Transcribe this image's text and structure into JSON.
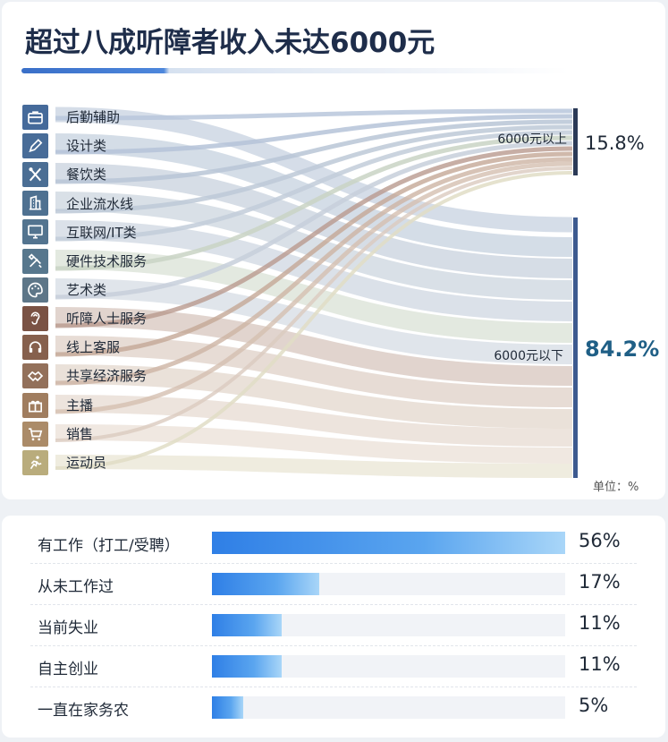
{
  "title": "超过八成听障者收入未达6000元",
  "unit": "单位：%",
  "chart_data": [
    {
      "type": "sankey",
      "sources": [
        {
          "label": "后勤辅助",
          "icon": "briefcase-icon",
          "color": "#456a9a"
        },
        {
          "label": "设计类",
          "icon": "pencil-icon",
          "color": "#486c98"
        },
        {
          "label": "餐饮类",
          "icon": "fork-spoon-icon",
          "color": "#4b6e94"
        },
        {
          "label": "企业流水线",
          "icon": "building-icon",
          "color": "#4f7191"
        },
        {
          "label": "互联网/IT类",
          "icon": "monitor-icon",
          "color": "#53748f"
        },
        {
          "label": "硬件技术服务",
          "icon": "tools-icon",
          "color": "#57778d"
        },
        {
          "label": "艺术类",
          "icon": "palette-icon",
          "color": "#5d7688"
        },
        {
          "label": "听障人士服务",
          "icon": "ear-icon",
          "color": "#7a5244"
        },
        {
          "label": "线上客服",
          "icon": "headset-icon",
          "color": "#86604d"
        },
        {
          "label": "共享经济服务",
          "icon": "handshake-icon",
          "color": "#93705a"
        },
        {
          "label": "主播",
          "icon": "gift-icon",
          "color": "#a07d5f"
        },
        {
          "label": "销售",
          "icon": "cart-icon",
          "color": "#ab8b68"
        },
        {
          "label": "运动员",
          "icon": "runner-icon",
          "color": "#b9ac7c"
        }
      ],
      "targets": [
        {
          "label": "6000元以上",
          "value": 15.8,
          "value_label": "15.8%"
        },
        {
          "label": "6000元以下",
          "value": 84.2,
          "value_label": "84.2%"
        }
      ]
    },
    {
      "type": "bar",
      "categories": [
        "有工作（打工/受聘）",
        "从未工作过",
        "当前失业",
        "自主创业",
        "一直在家务农"
      ],
      "values": [
        56,
        17,
        11,
        11,
        5
      ],
      "value_labels": [
        "56%",
        "17%",
        "11%",
        "11%",
        "5%"
      ],
      "xlim": [
        0,
        56
      ]
    }
  ]
}
